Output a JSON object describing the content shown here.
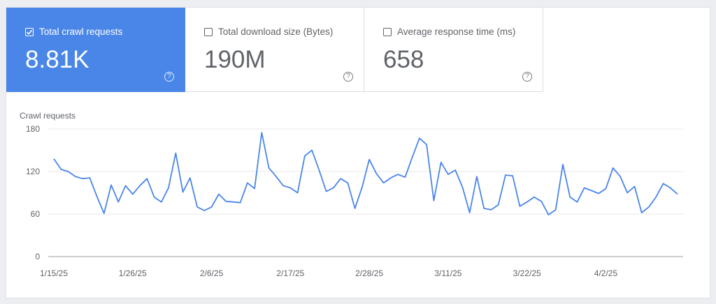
{
  "metrics": [
    {
      "label": "Total crawl requests",
      "value": "8.81K",
      "checked": true,
      "help_icon": "help-circle-icon"
    },
    {
      "label": "Total download size (Bytes)",
      "value": "190M",
      "checked": false,
      "help_icon": "help-circle-icon"
    },
    {
      "label": "Average response time (ms)",
      "value": "658",
      "checked": false,
      "help_icon": "help-circle-icon"
    }
  ],
  "help_glyph": "?",
  "colors": {
    "accent": "#4a86e8",
    "line": "#4a86e8",
    "grid": "#e8eaed",
    "text": "#5f6368"
  },
  "chart_data": {
    "type": "line",
    "title": "Crawl requests",
    "xlabel": "",
    "ylabel": "",
    "ylim": [
      0,
      180
    ],
    "yticks": [
      "0",
      "60",
      "120",
      "180"
    ],
    "grid": true,
    "x_tick_labels": [
      "1/15/25",
      "1/26/25",
      "2/6/25",
      "2/17/25",
      "2/28/25",
      "3/11/25",
      "3/22/25",
      "4/2/25"
    ],
    "series": [
      {
        "x": [
          "1/15/25",
          "1/16/25",
          "1/17/25",
          "1/18/25",
          "1/19/25",
          "1/20/25",
          "1/21/25",
          "1/22/25",
          "1/23/25",
          "1/24/25",
          "1/25/25",
          "1/26/25",
          "1/27/25",
          "1/28/25",
          "1/29/25",
          "1/30/25",
          "1/31/25",
          "2/1/25",
          "2/2/25",
          "2/3/25",
          "2/4/25",
          "2/5/25",
          "2/6/25",
          "2/7/25",
          "2/8/25",
          "2/9/25",
          "2/10/25",
          "2/11/25",
          "2/12/25",
          "2/13/25",
          "2/14/25",
          "2/15/25",
          "2/16/25",
          "2/17/25",
          "2/18/25",
          "2/19/25",
          "2/20/25",
          "2/21/25",
          "2/22/25",
          "2/23/25",
          "2/24/25",
          "2/25/25",
          "2/26/25",
          "2/27/25",
          "2/28/25",
          "3/1/25",
          "3/2/25",
          "3/3/25",
          "3/4/25",
          "3/5/25",
          "3/6/25",
          "3/7/25",
          "3/8/25",
          "3/9/25",
          "3/10/25",
          "3/11/25",
          "3/12/25",
          "3/13/25",
          "3/14/25",
          "3/15/25",
          "3/16/25",
          "3/17/25",
          "3/18/25",
          "3/19/25",
          "3/20/25",
          "3/21/25",
          "3/22/25",
          "3/23/25",
          "3/24/25",
          "3/25/25",
          "3/26/25",
          "3/27/25",
          "3/28/25",
          "3/29/25",
          "3/30/25",
          "3/31/25",
          "4/1/25",
          "4/2/25",
          "4/3/25",
          "4/4/25",
          "4/5/25",
          "4/6/25",
          "4/7/25",
          "4/8/25",
          "4/9/25",
          "4/10/25",
          "4/11/25",
          "4/12/25"
        ],
        "values": [
          138,
          123,
          120,
          113,
          110,
          111,
          85,
          61,
          101,
          77,
          100,
          88,
          100,
          110,
          84,
          77,
          97,
          146,
          91,
          111,
          70,
          65,
          70,
          88,
          78,
          77,
          76,
          104,
          96,
          175,
          125,
          113,
          100,
          97,
          90,
          142,
          150,
          122,
          92,
          97,
          110,
          104,
          68,
          98,
          137,
          117,
          104,
          111,
          116,
          112,
          140,
          167,
          158,
          79,
          133,
          116,
          122,
          98,
          62,
          113,
          68,
          66,
          73,
          115,
          114,
          71,
          77,
          84,
          78,
          59,
          66,
          130,
          84,
          77,
          97,
          93,
          89,
          96,
          125,
          113,
          90,
          99,
          62,
          70,
          84,
          103,
          97,
          88
        ]
      }
    ]
  }
}
